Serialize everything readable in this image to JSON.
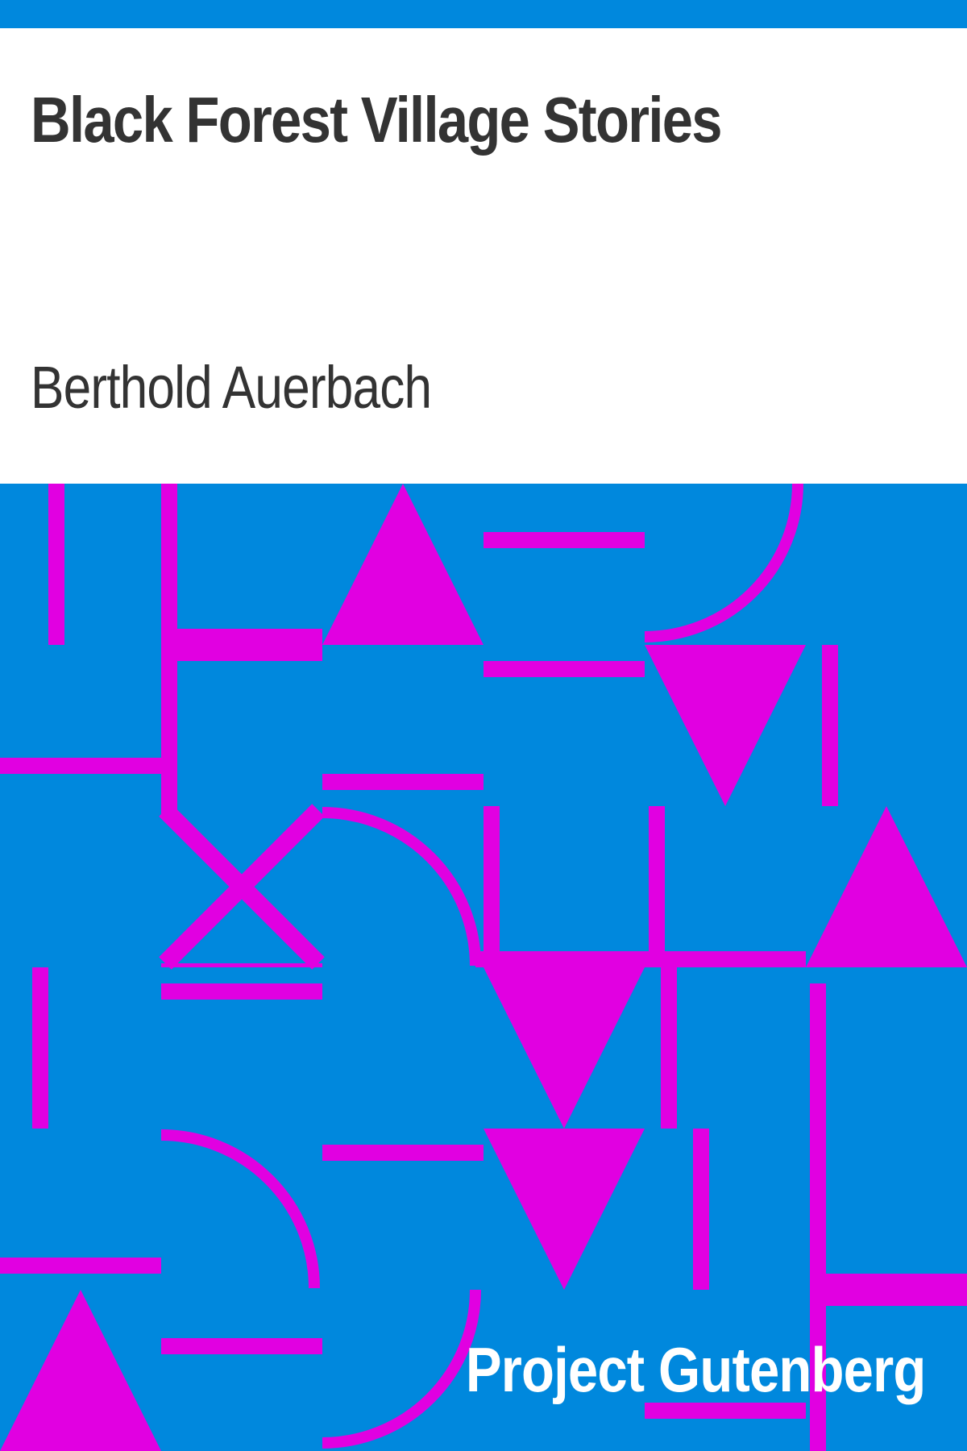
{
  "cover": {
    "title": "Black Forest Village Stories",
    "author": "Berthold Auerbach",
    "publisher": "Project Gutenberg"
  },
  "colors": {
    "background_blue": "#0088dd",
    "pattern_magenta": "#e100e1",
    "title_text": "#333333",
    "panel_white": "#ffffff",
    "publisher_text": "#ffffff"
  }
}
